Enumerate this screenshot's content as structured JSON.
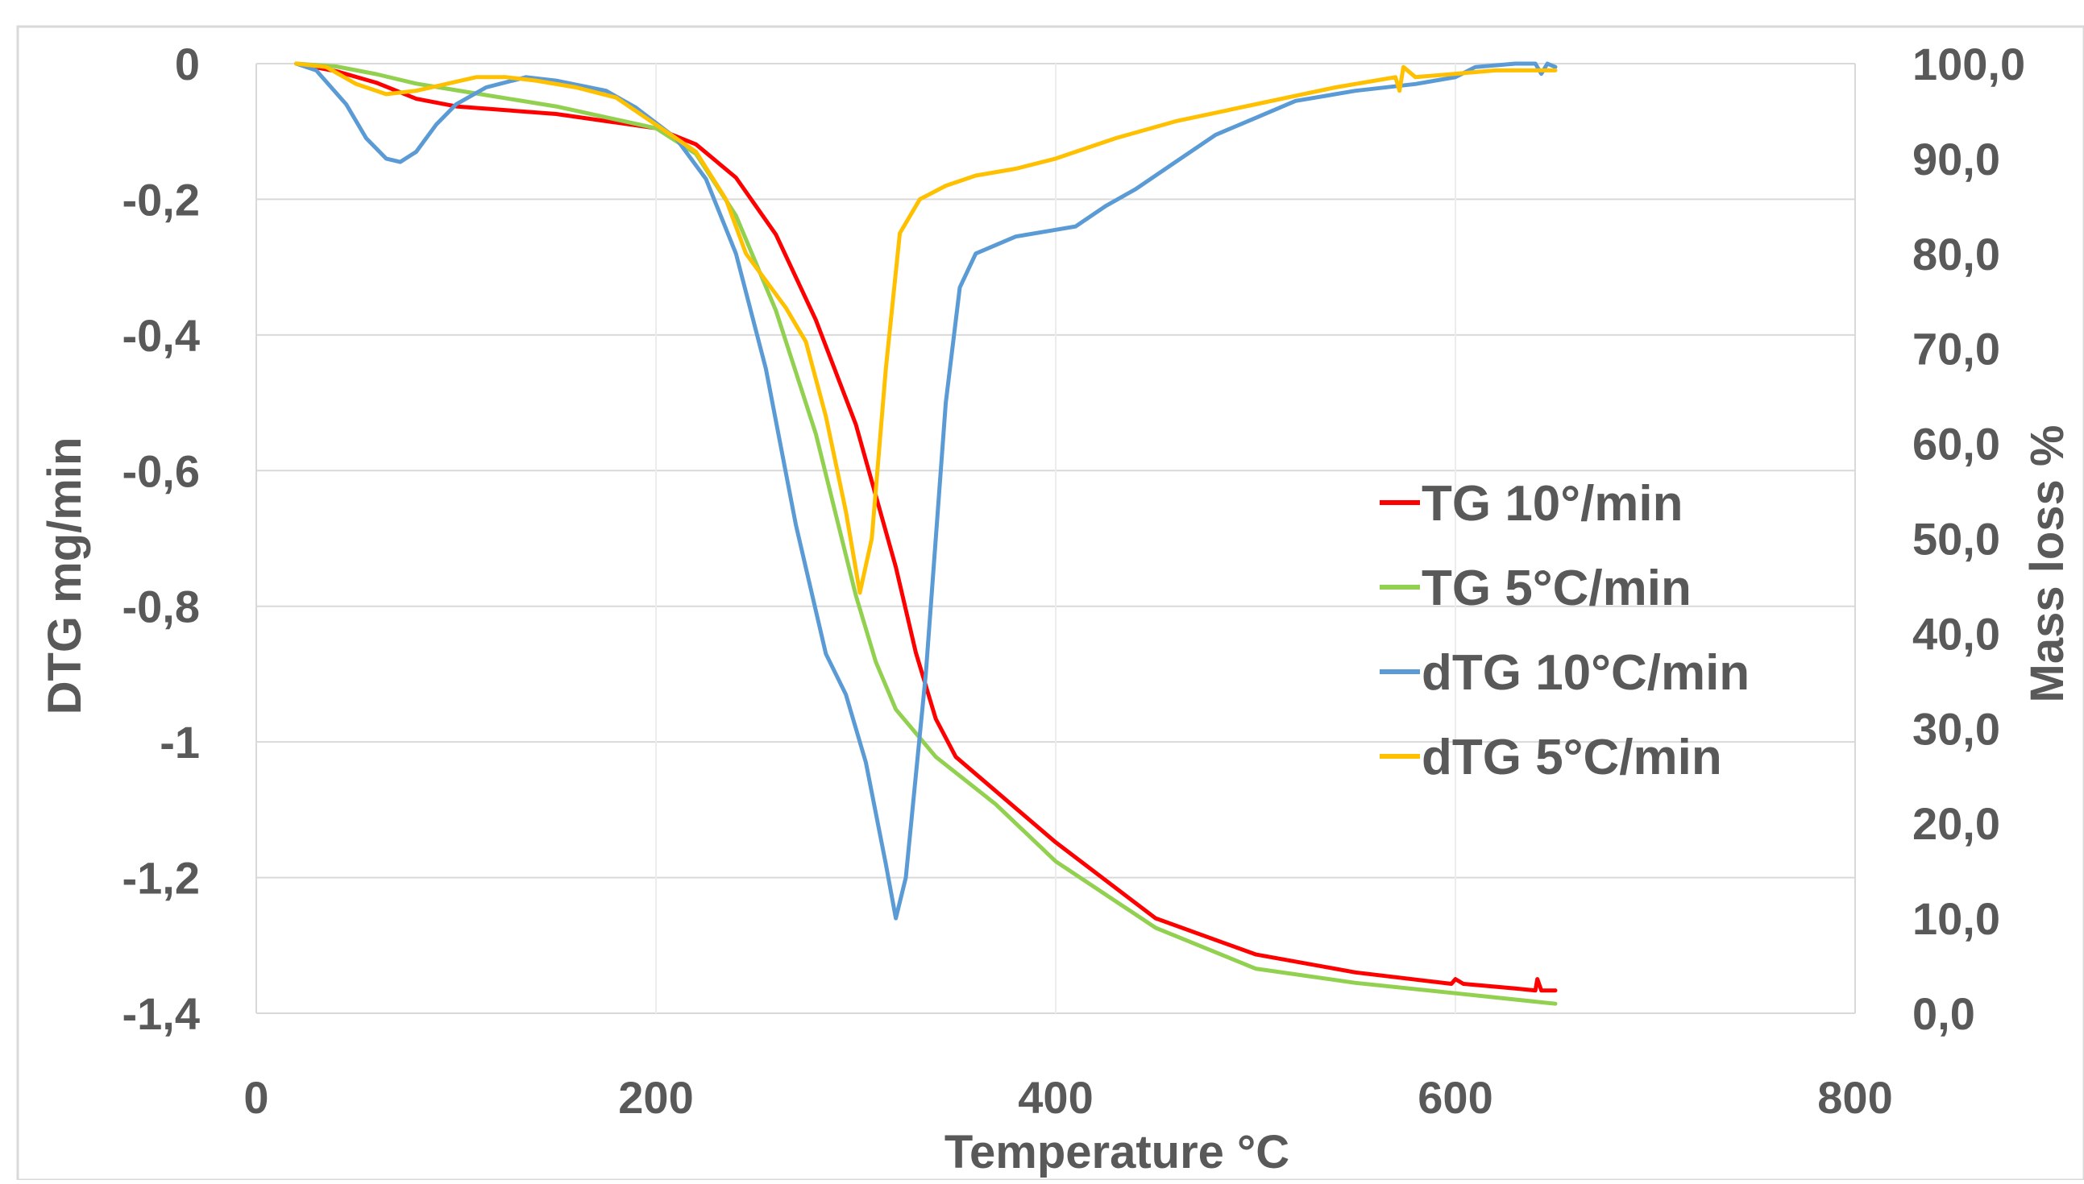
{
  "chart_data": {
    "type": "line",
    "title": "",
    "xlabel": "Temperature °C",
    "ylabel_left": "DTG mg/min",
    "ylabel_right": "Mass loss %",
    "x_ticks": [
      "0",
      "200",
      "400",
      "600",
      "800"
    ],
    "y_left_ticks": [
      "0",
      "-0,2",
      "-0,4",
      "-0,6",
      "-0,8",
      "-1",
      "-1,2",
      "-1,4"
    ],
    "y_right_ticks": [
      "100,0",
      "90,0",
      "80,0",
      "70,0",
      "60,0",
      "50,0",
      "40,0",
      "30,0",
      "20,0",
      "10,0",
      "0,0"
    ],
    "xlim": [
      0,
      800
    ],
    "ylim_left": [
      -1.4,
      0
    ],
    "ylim_right": [
      0,
      100
    ],
    "grid": "horizontal",
    "legend_position": "right",
    "series": [
      {
        "name": "TG 10°/min",
        "axis": "right",
        "color": "#ff0000",
        "points": [
          [
            20,
            100
          ],
          [
            40,
            99.2
          ],
          [
            60,
            98
          ],
          [
            80,
            96.3
          ],
          [
            100,
            95.5
          ],
          [
            150,
            94.7
          ],
          [
            200,
            93.2
          ],
          [
            220,
            91.5
          ],
          [
            240,
            88
          ],
          [
            260,
            82
          ],
          [
            280,
            73
          ],
          [
            300,
            62
          ],
          [
            320,
            47
          ],
          [
            330,
            38
          ],
          [
            340,
            31
          ],
          [
            350,
            27
          ],
          [
            400,
            18
          ],
          [
            450,
            10
          ],
          [
            500,
            6.2
          ],
          [
            550,
            4.3
          ],
          [
            598,
            3.1
          ],
          [
            600,
            3.6
          ],
          [
            604,
            3.1
          ],
          [
            630,
            2.6
          ],
          [
            640,
            2.4
          ],
          [
            641,
            3.6
          ],
          [
            643,
            2.4
          ],
          [
            650,
            2.4
          ]
        ]
      },
      {
        "name": "TG 5°C/min",
        "axis": "right",
        "color": "#92d050",
        "points": [
          [
            20,
            100
          ],
          [
            40,
            99.7
          ],
          [
            60,
            98.9
          ],
          [
            80,
            97.9
          ],
          [
            100,
            97.2
          ],
          [
            150,
            95.5
          ],
          [
            200,
            93.2
          ],
          [
            220,
            90.5
          ],
          [
            240,
            84
          ],
          [
            260,
            74
          ],
          [
            280,
            61
          ],
          [
            300,
            44
          ],
          [
            310,
            37
          ],
          [
            320,
            32
          ],
          [
            340,
            27
          ],
          [
            370,
            22
          ],
          [
            400,
            16
          ],
          [
            450,
            9
          ],
          [
            500,
            4.7
          ],
          [
            550,
            3.2
          ],
          [
            600,
            2.1
          ],
          [
            650,
            1
          ]
        ]
      },
      {
        "name": "dTG 10°C/min",
        "axis": "left",
        "color": "#5b9bd5",
        "points": [
          [
            20,
            0
          ],
          [
            30,
            -0.01
          ],
          [
            45,
            -0.06
          ],
          [
            55,
            -0.11
          ],
          [
            65,
            -0.14
          ],
          [
            72,
            -0.145
          ],
          [
            80,
            -0.13
          ],
          [
            90,
            -0.09
          ],
          [
            100,
            -0.06
          ],
          [
            115,
            -0.035
          ],
          [
            135,
            -0.02
          ],
          [
            150,
            -0.025
          ],
          [
            175,
            -0.04
          ],
          [
            190,
            -0.065
          ],
          [
            210,
            -0.11
          ],
          [
            225,
            -0.17
          ],
          [
            240,
            -0.28
          ],
          [
            255,
            -0.45
          ],
          [
            270,
            -0.68
          ],
          [
            285,
            -0.87
          ],
          [
            295,
            -0.93
          ],
          [
            305,
            -1.03
          ],
          [
            315,
            -1.18
          ],
          [
            320,
            -1.26
          ],
          [
            325,
            -1.2
          ],
          [
            335,
            -0.9
          ],
          [
            345,
            -0.5
          ],
          [
            352,
            -0.33
          ],
          [
            360,
            -0.28
          ],
          [
            380,
            -0.255
          ],
          [
            400,
            -0.245
          ],
          [
            410,
            -0.24
          ],
          [
            425,
            -0.21
          ],
          [
            440,
            -0.185
          ],
          [
            460,
            -0.145
          ],
          [
            480,
            -0.105
          ],
          [
            500,
            -0.08
          ],
          [
            520,
            -0.055
          ],
          [
            550,
            -0.04
          ],
          [
            580,
            -0.03
          ],
          [
            600,
            -0.02
          ],
          [
            610,
            -0.005
          ],
          [
            630,
            0
          ],
          [
            640,
            0
          ],
          [
            643,
            -0.015
          ],
          [
            646,
            0
          ],
          [
            650,
            -0.005
          ]
        ]
      },
      {
        "name": "dTG 5°C/min",
        "axis": "left",
        "color": "#ffc000",
        "points": [
          [
            20,
            0
          ],
          [
            35,
            -0.005
          ],
          [
            50,
            -0.03
          ],
          [
            65,
            -0.045
          ],
          [
            80,
            -0.04
          ],
          [
            95,
            -0.03
          ],
          [
            110,
            -0.02
          ],
          [
            125,
            -0.02
          ],
          [
            140,
            -0.025
          ],
          [
            160,
            -0.035
          ],
          [
            180,
            -0.05
          ],
          [
            200,
            -0.09
          ],
          [
            220,
            -0.13
          ],
          [
            235,
            -0.2
          ],
          [
            245,
            -0.28
          ],
          [
            255,
            -0.32
          ],
          [
            265,
            -0.36
          ],
          [
            275,
            -0.41
          ],
          [
            285,
            -0.52
          ],
          [
            295,
            -0.66
          ],
          [
            302,
            -0.78
          ],
          [
            308,
            -0.7
          ],
          [
            315,
            -0.45
          ],
          [
            322,
            -0.25
          ],
          [
            332,
            -0.2
          ],
          [
            345,
            -0.18
          ],
          [
            360,
            -0.165
          ],
          [
            380,
            -0.155
          ],
          [
            400,
            -0.14
          ],
          [
            430,
            -0.11
          ],
          [
            460,
            -0.085
          ],
          [
            500,
            -0.06
          ],
          [
            540,
            -0.035
          ],
          [
            570,
            -0.02
          ],
          [
            572,
            -0.04
          ],
          [
            574,
            -0.005
          ],
          [
            580,
            -0.02
          ],
          [
            600,
            -0.015
          ],
          [
            620,
            -0.01
          ],
          [
            650,
            -0.01
          ]
        ]
      }
    ]
  }
}
